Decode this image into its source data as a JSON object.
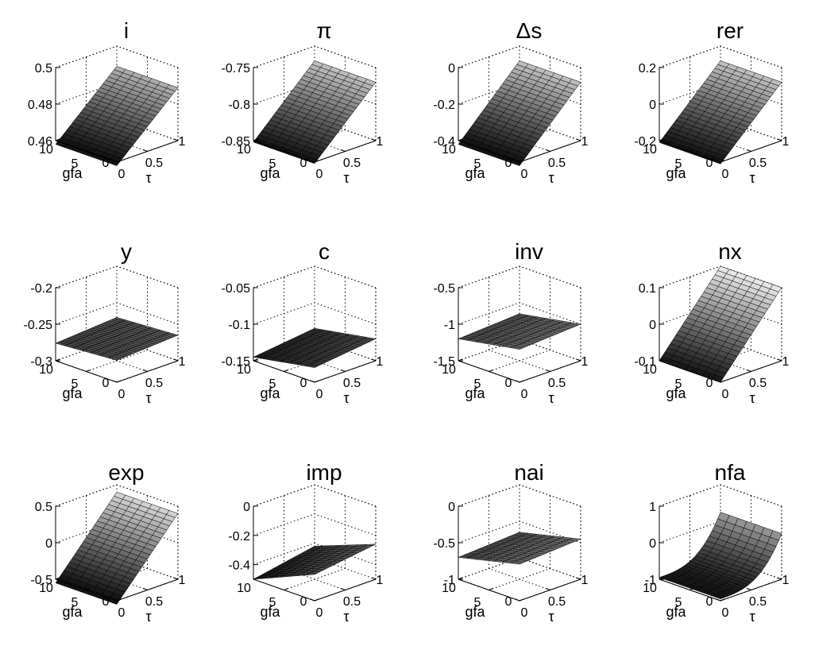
{
  "figure": {
    "background": "#ffffff",
    "surface_colormap": [
      "#000000",
      "#3a3a3a",
      "#7a7a7a",
      "#c0c0c0",
      "#f2f2f2"
    ]
  },
  "chart_data": [
    {
      "type": "surface",
      "title": "i",
      "xlabel": "gfa",
      "ylabel": "τ",
      "x_ticks": [
        "0",
        "5",
        "10"
      ],
      "y_ticks": [
        "0",
        "0.5",
        "1"
      ],
      "z_ticks": [
        "0.46",
        "0.48",
        "0.5"
      ],
      "zlim": [
        0.46,
        0.5
      ],
      "x_range": [
        0,
        10
      ],
      "y_range": [
        0,
        1
      ],
      "z_at_corners": {
        "gfa0_tau0": 0.458,
        "gfa10_tau0": 0.458,
        "gfa0_tau1": 0.489,
        "gfa10_tau1": 0.489
      },
      "grid": "dotted",
      "view": "3d"
    },
    {
      "type": "surface",
      "title": "π",
      "xlabel": "gfa",
      "ylabel": "τ",
      "x_ticks": [
        "0",
        "5",
        "10"
      ],
      "y_ticks": [
        "0",
        "0.5",
        "1"
      ],
      "z_ticks": [
        "-0.85",
        "-0.8",
        "-0.75"
      ],
      "zlim": [
        -0.85,
        -0.75
      ],
      "x_range": [
        0,
        10
      ],
      "y_range": [
        0,
        1
      ],
      "z_at_corners": {
        "gfa0_tau0": -0.852,
        "gfa10_tau0": -0.852,
        "gfa0_tau1": -0.77,
        "gfa10_tau1": -0.77
      },
      "grid": "dotted",
      "view": "3d"
    },
    {
      "type": "surface",
      "title": "Δs",
      "xlabel": "gfa",
      "ylabel": "τ",
      "x_ticks": [
        "0",
        "5",
        "10"
      ],
      "y_ticks": [
        "0",
        "0.5",
        "1"
      ],
      "z_ticks": [
        "-0.4",
        "-0.2",
        "0"
      ],
      "zlim": [
        -0.4,
        0
      ],
      "x_range": [
        0,
        10
      ],
      "y_range": [
        0,
        1
      ],
      "z_at_corners": {
        "gfa0_tau0": -0.42,
        "gfa10_tau0": -0.42,
        "gfa0_tau1": -0.08,
        "gfa10_tau1": -0.08
      },
      "grid": "dotted",
      "view": "3d"
    },
    {
      "type": "surface",
      "title": "rer",
      "xlabel": "gfa",
      "ylabel": "τ",
      "x_ticks": [
        "0",
        "5",
        "10"
      ],
      "y_ticks": [
        "0",
        "0.5",
        "1"
      ],
      "z_ticks": [
        "-0.2",
        "0",
        "0.2"
      ],
      "zlim": [
        -0.2,
        0.2
      ],
      "x_range": [
        0,
        10
      ],
      "y_range": [
        0,
        1
      ],
      "z_at_corners": {
        "gfa0_tau0": -0.21,
        "gfa10_tau0": -0.21,
        "gfa0_tau1": 0.12,
        "gfa10_tau1": 0.12
      },
      "grid": "dotted",
      "view": "3d"
    },
    {
      "type": "surface",
      "title": "y",
      "xlabel": "gfa",
      "ylabel": "τ",
      "x_ticks": [
        "0",
        "5",
        "10"
      ],
      "y_ticks": [
        "0",
        "0.5",
        "1"
      ],
      "z_ticks": [
        "-0.3",
        "-0.25",
        "-0.2"
      ],
      "zlim": [
        -0.3,
        -0.2
      ],
      "x_range": [
        0,
        10
      ],
      "y_range": [
        0,
        1
      ],
      "z_at_corners": {
        "gfa0_tau0": -0.27,
        "gfa10_tau0": -0.276,
        "gfa0_tau1": -0.265,
        "gfa10_tau1": -0.27
      },
      "grid": "dotted",
      "view": "3d"
    },
    {
      "type": "surface",
      "title": "c",
      "xlabel": "gfa",
      "ylabel": "τ",
      "x_ticks": [
        "0",
        "5",
        "10"
      ],
      "y_ticks": [
        "0",
        "0.5",
        "1"
      ],
      "z_ticks": [
        "-0.15",
        "-0.1",
        "-0.05"
      ],
      "zlim": [
        -0.15,
        -0.05
      ],
      "x_range": [
        0,
        10
      ],
      "y_range": [
        0,
        1
      ],
      "z_at_corners": {
        "gfa0_tau0": -0.13,
        "gfa10_tau0": -0.145,
        "gfa0_tau1": -0.12,
        "gfa10_tau1": -0.135
      },
      "grid": "dotted",
      "view": "3d"
    },
    {
      "type": "surface",
      "title": "inv",
      "xlabel": "gfa",
      "ylabel": "τ",
      "x_ticks": [
        "0",
        "5",
        "10"
      ],
      "y_ticks": [
        "0",
        "0.5",
        "1"
      ],
      "z_ticks": [
        "-1.5",
        "-1",
        "-0.5"
      ],
      "zlim": [
        -1.5,
        -0.5
      ],
      "x_range": [
        0,
        10
      ],
      "y_range": [
        0,
        1
      ],
      "z_at_corners": {
        "gfa0_tau0": -1.05,
        "gfa10_tau0": -1.2,
        "gfa0_tau1": -1.0,
        "gfa10_tau1": -1.15
      },
      "grid": "dotted",
      "view": "3d"
    },
    {
      "type": "surface",
      "title": "nx",
      "xlabel": "gfa",
      "ylabel": "τ",
      "x_ticks": [
        "0",
        "5",
        "10"
      ],
      "y_ticks": [
        "0",
        "0.5",
        "1"
      ],
      "z_ticks": [
        "-0.1",
        "0",
        "0.1"
      ],
      "zlim": [
        -0.1,
        0.1
      ],
      "x_range": [
        0,
        10
      ],
      "y_range": [
        0,
        1
      ],
      "z_at_corners": {
        "gfa0_tau0": -0.1,
        "gfa10_tau0": -0.1,
        "gfa0_tau1": 0.1,
        "gfa10_tau1": 0.1
      },
      "grid": "dotted",
      "view": "3d"
    },
    {
      "type": "surface",
      "title": "exp",
      "xlabel": "gfa",
      "ylabel": "τ",
      "x_ticks": [
        "0",
        "5",
        "10"
      ],
      "y_ticks": [
        "0",
        "0.5",
        "1"
      ],
      "z_ticks": [
        "-0.5",
        "0",
        "0.5"
      ],
      "zlim": [
        -0.5,
        0.5
      ],
      "x_range": [
        0,
        10
      ],
      "y_range": [
        0,
        1
      ],
      "z_at_corners": {
        "gfa0_tau0": -0.55,
        "gfa10_tau0": -0.55,
        "gfa0_tau1": 0.4,
        "gfa10_tau1": 0.4
      },
      "grid": "dotted",
      "view": "3d"
    },
    {
      "type": "surface",
      "title": "imp",
      "xlabel": "gfa",
      "ylabel": "τ",
      "x_ticks": [
        "0",
        "5",
        "10"
      ],
      "y_ticks": [
        "0",
        "0.5",
        "1"
      ],
      "z_ticks": [
        "-0.4",
        "-0.2",
        "0"
      ],
      "zlim": [
        -0.5,
        0
      ],
      "x_range": [
        0,
        10
      ],
      "y_range": [
        0,
        1
      ],
      "z_at_corners": {
        "gfa0_tau0": -0.32,
        "gfa10_tau0": -0.5,
        "gfa0_tau1": -0.26,
        "gfa10_tau1": -0.42
      },
      "grid": "dotted",
      "view": "3d"
    },
    {
      "type": "surface",
      "title": "nai",
      "xlabel": "gfa",
      "ylabel": "τ",
      "x_ticks": [
        "0",
        "5",
        "10"
      ],
      "y_ticks": [
        "0",
        "0.5",
        "1"
      ],
      "z_ticks": [
        "-1",
        "-0.5",
        "0"
      ],
      "zlim": [
        -1,
        0
      ],
      "x_range": [
        0,
        10
      ],
      "y_range": [
        0,
        1
      ],
      "z_at_corners": {
        "gfa0_tau0": -0.5,
        "gfa10_tau0": -0.7,
        "gfa0_tau1": -0.45,
        "gfa10_tau1": -0.65
      },
      "grid": "dotted",
      "view": "3d"
    },
    {
      "type": "surface",
      "title": "nfa",
      "xlabel": "gfa",
      "ylabel": "τ",
      "x_ticks": [
        "0",
        "5",
        "10"
      ],
      "y_ticks": [
        "0",
        "0.5",
        "1"
      ],
      "z_ticks": [
        "-1",
        "0",
        "1"
      ],
      "zlim": [
        -1,
        1
      ],
      "x_range": [
        0,
        10
      ],
      "y_range": [
        0,
        1
      ],
      "z_at_corners": {
        "gfa0_tau0": -0.95,
        "gfa10_tau0": -0.95,
        "gfa0_tau1": 0.25,
        "gfa10_tau1": 0.25
      },
      "tau_curvature": 0.9,
      "grid": "dotted",
      "view": "3d"
    }
  ]
}
